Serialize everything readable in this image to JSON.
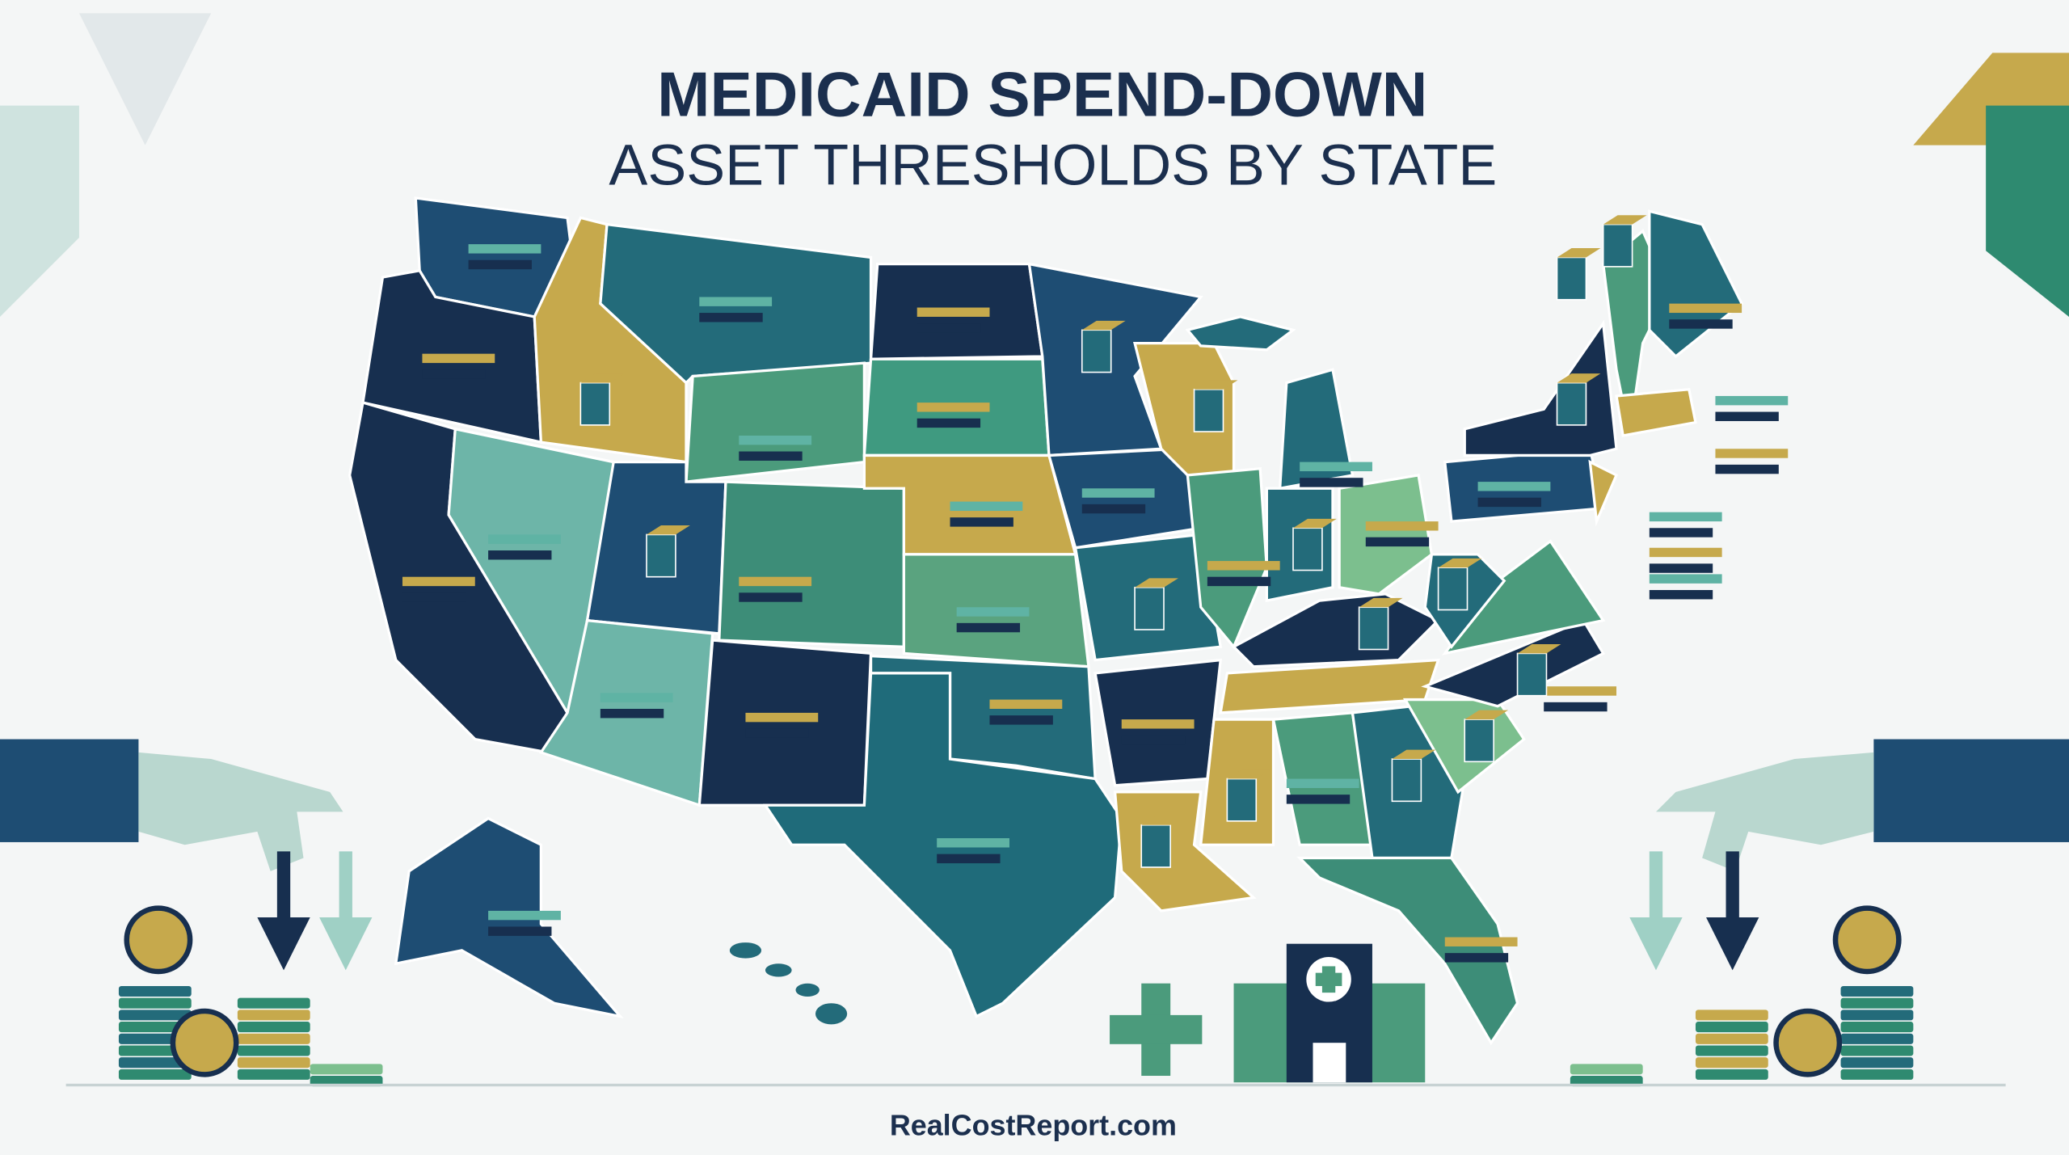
{
  "header": {
    "title": "MEDICAID SPEND-DOWN",
    "subtitle": "ASSET THRESHOLDS BY STATE"
  },
  "footer": {
    "site": "RealCostReport.com"
  }
}
